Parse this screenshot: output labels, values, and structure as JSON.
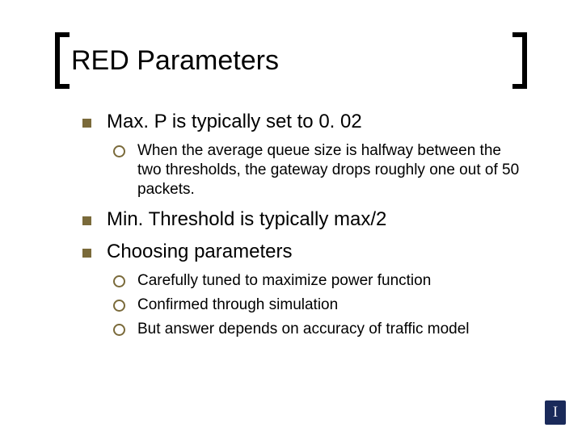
{
  "colors": {
    "bullet_square": "#7a6a3a",
    "bullet_ring": "#7a6a3a",
    "text": "#000000",
    "background": "#ffffff",
    "logo_bg": "#1a2a5a",
    "logo_fg": "#e8e8f0"
  },
  "typography": {
    "title_fontsize": 34,
    "lvl1_fontsize": 24,
    "lvl2_fontsize": 19,
    "font_family": "Arial"
  },
  "title": "RED Parameters",
  "items": [
    {
      "text": "Max. P is typically set to 0. 02",
      "children": [
        "When the average queue size is halfway between the two thresholds, the gateway drops roughly one out of 50 packets."
      ]
    },
    {
      "text": "Min. Threshold is typically max/2",
      "children": []
    },
    {
      "text": "Choosing parameters",
      "children": [
        "Carefully tuned to maximize power function",
        "Confirmed through simulation",
        "But answer depends on accuracy of traffic model"
      ]
    }
  ],
  "logo": "I"
}
